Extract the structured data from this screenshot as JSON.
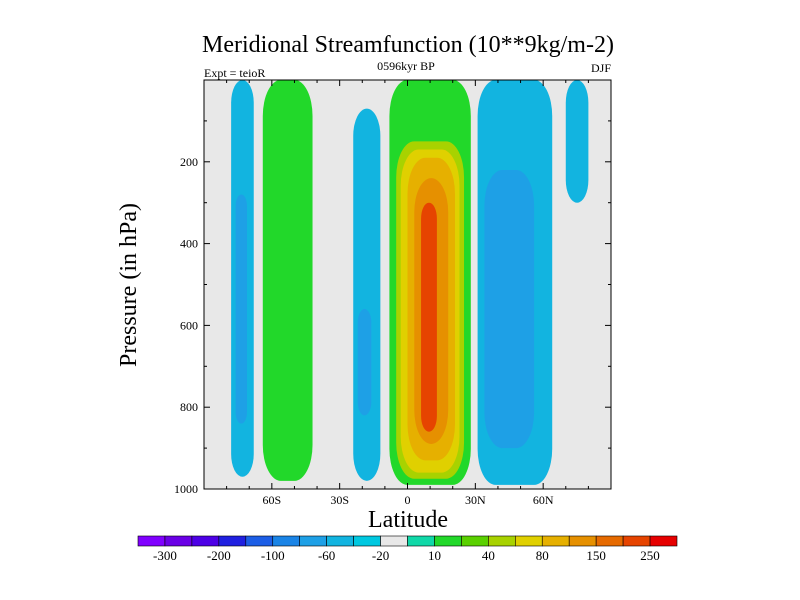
{
  "chart_data": {
    "type": "heatmap",
    "title": "Meridional Streamfunction (10**9kg/m-2)",
    "left_label": "Expt = teioR",
    "center_label": "0596kyr BP",
    "right_label": "DJF",
    "xlabel": "Latitude",
    "ylabel": "Pressure (in hPa)",
    "xlim": [
      -90,
      90
    ],
    "ylim": [
      1000,
      0
    ],
    "x_ticks": [
      {
        "value": -60,
        "label": "60S"
      },
      {
        "value": -30,
        "label": "30S"
      },
      {
        "value": 0,
        "label": "0"
      },
      {
        "value": 30,
        "label": "30N"
      },
      {
        "value": 60,
        "label": "60N"
      }
    ],
    "y_ticks": [
      {
        "value": 200,
        "label": "200"
      },
      {
        "value": 400,
        "label": "400"
      },
      {
        "value": 600,
        "label": "600"
      },
      {
        "value": 800,
        "label": "800"
      },
      {
        "value": 1000,
        "label": "1000"
      }
    ],
    "colorbar": {
      "colors": [
        "#8000ff",
        "#6a00e6",
        "#4d00e6",
        "#2020e0",
        "#1c5ee6",
        "#1a84e6",
        "#1ea0e6",
        "#12b4e0",
        "#00c8e0",
        "#e8e8e8",
        "#10d8a8",
        "#22d82a",
        "#5ad000",
        "#a8d200",
        "#e0d000",
        "#e6b000",
        "#e69000",
        "#e66a00",
        "#e64400",
        "#e60000"
      ],
      "labels": [
        "-300",
        "-200",
        "-100",
        "-60",
        "-20",
        "10",
        "40",
        "80",
        "150",
        "250"
      ]
    },
    "contours": [
      {
        "level": -20,
        "color": "#12b4e0",
        "x_range": [
          -78,
          -68
        ],
        "p_range": [
          0,
          970
        ]
      },
      {
        "level": -40,
        "color": "#1ea0e6",
        "x_range": [
          -76,
          -71
        ],
        "p_range": [
          280,
          840
        ]
      },
      {
        "level": 40,
        "color": "#22d82a",
        "x_range": [
          -64,
          -42
        ],
        "p_range": [
          0,
          980
        ]
      },
      {
        "level": -20,
        "color": "#12b4e0",
        "x_range": [
          -24,
          -12
        ],
        "p_range": [
          70,
          980
        ]
      },
      {
        "level": -40,
        "color": "#1ea0e6",
        "x_range": [
          -22,
          -16
        ],
        "p_range": [
          560,
          820
        ]
      },
      {
        "level": 40,
        "color": "#22d82a",
        "x_range": [
          -8,
          28
        ],
        "p_range": [
          0,
          990
        ]
      },
      {
        "level": 60,
        "color": "#a8d200",
        "x_range": [
          -5,
          25
        ],
        "p_range": [
          150,
          975
        ]
      },
      {
        "level": 80,
        "color": "#e0d000",
        "x_range": [
          -3,
          23
        ],
        "p_range": [
          170,
          960
        ]
      },
      {
        "level": 100,
        "color": "#e6b000",
        "x_range": [
          0,
          21
        ],
        "p_range": [
          190,
          930
        ]
      },
      {
        "level": 150,
        "color": "#e69000",
        "x_range": [
          3,
          18
        ],
        "p_range": [
          240,
          890
        ]
      },
      {
        "level": 250,
        "color": "#e64400",
        "x_range": [
          6,
          13
        ],
        "p_range": [
          300,
          860
        ]
      },
      {
        "level": -20,
        "color": "#12b4e0",
        "x_range": [
          31,
          64
        ],
        "p_range": [
          0,
          990
        ]
      },
      {
        "level": -40,
        "color": "#1ea0e6",
        "x_range": [
          34,
          56
        ],
        "p_range": [
          220,
          900
        ]
      },
      {
        "level": -20,
        "color": "#12b4e0",
        "x_range": [
          70,
          80
        ],
        "p_range": [
          0,
          300
        ]
      }
    ]
  }
}
